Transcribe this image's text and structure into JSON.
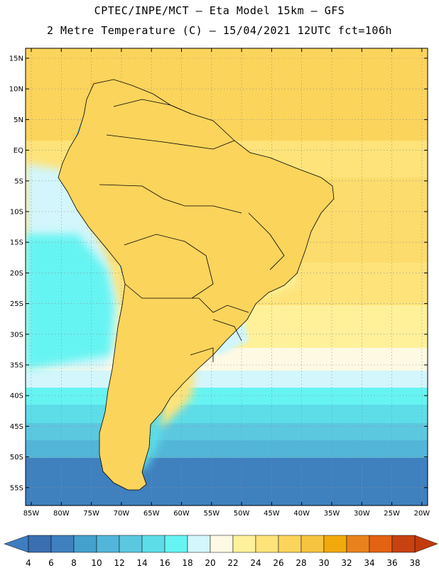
{
  "header": {
    "line1": "CPTEC/INPE/MCT –  Eta Model 15km – GFS",
    "line2": "2 Metre Temperature (C) – 15/04/2021 12UTC fct=106h"
  },
  "map": {
    "lat_labels": [
      "15N",
      "10N",
      "5N",
      "EQ",
      "5S",
      "10S",
      "15S",
      "20S",
      "25S",
      "30S",
      "35S",
      "40S",
      "45S",
      "50S",
      "55S"
    ],
    "lon_labels": [
      "85W",
      "80W",
      "75W",
      "70W",
      "65W",
      "60W",
      "55W",
      "50W",
      "45W",
      "40W",
      "35W",
      "30W",
      "25W",
      "20W"
    ]
  },
  "colorbar": {
    "labels": [
      "4",
      "6",
      "8",
      "10",
      "12",
      "14",
      "16",
      "18",
      "20",
      "22",
      "24",
      "26",
      "28",
      "30",
      "32",
      "34",
      "36",
      "38"
    ],
    "colors": [
      "#3a6fb2",
      "#3f80bf",
      "#44a0cc",
      "#52b6d8",
      "#5cc8e0",
      "#5ddde8",
      "#66f4f2",
      "#d2f6fb",
      "#fef9e3",
      "#fef19a",
      "#fde37a",
      "#fbd45c",
      "#f7c440",
      "#f2a90b",
      "#e9821c",
      "#e36213",
      "#c84210"
    ],
    "end_low": "#3e7dc0",
    "end_high": "#c23b0c"
  }
}
